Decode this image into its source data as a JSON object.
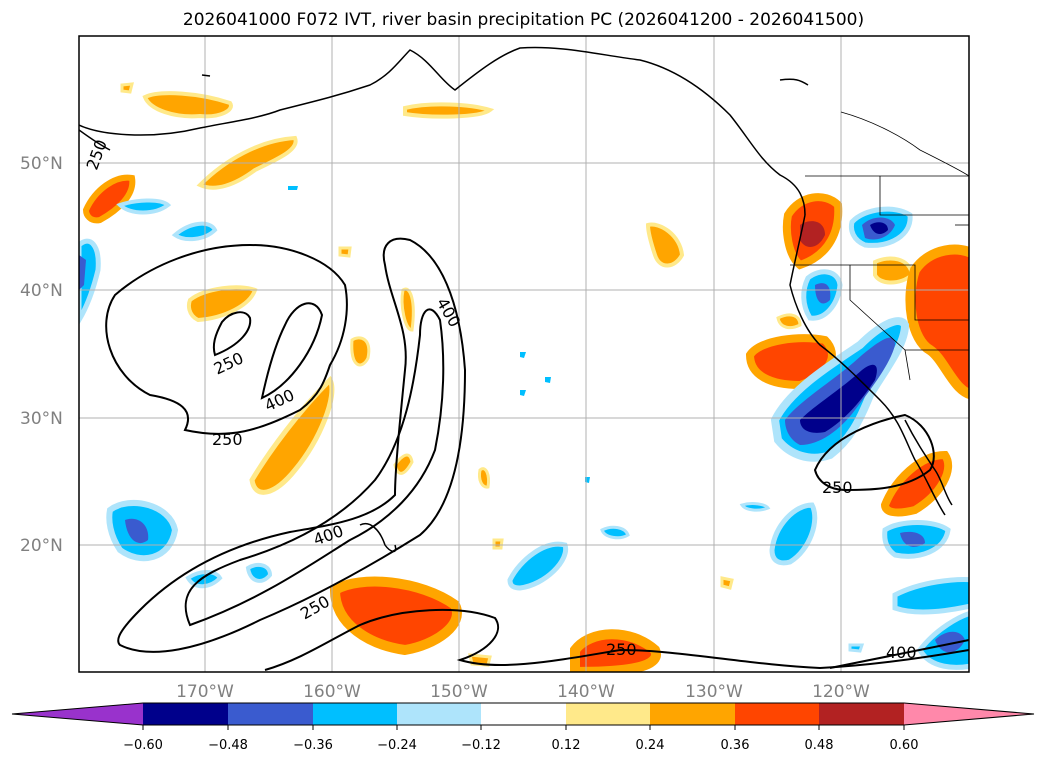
{
  "title": "2026041000 F072 IVT, river basin precipitation PC (2026041200 - 2026041500)",
  "map": {
    "lat_labels": [
      "50°N",
      "40°N",
      "30°N",
      "20°N"
    ],
    "lon_labels": [
      "170°W",
      "160°W",
      "150°W",
      "140°W",
      "130°W",
      "120°W"
    ],
    "contour_labels": [
      "250",
      "250",
      "250",
      "400",
      "400",
      "400",
      "250",
      "250",
      "250",
      "400"
    ]
  },
  "colorbar": {
    "ticks": [
      "−0.60",
      "−0.48",
      "−0.36",
      "−0.24",
      "−0.12",
      "0.12",
      "0.24",
      "0.36",
      "0.48",
      "0.60"
    ],
    "colors": [
      "#9932cc",
      "#00008b",
      "#3a5bcf",
      "#00bfff",
      "#aee4fb",
      "#ffffff",
      "#ffe98a",
      "#ffa500",
      "#ff4500",
      "#b22222",
      "#ff88aa"
    ]
  }
}
